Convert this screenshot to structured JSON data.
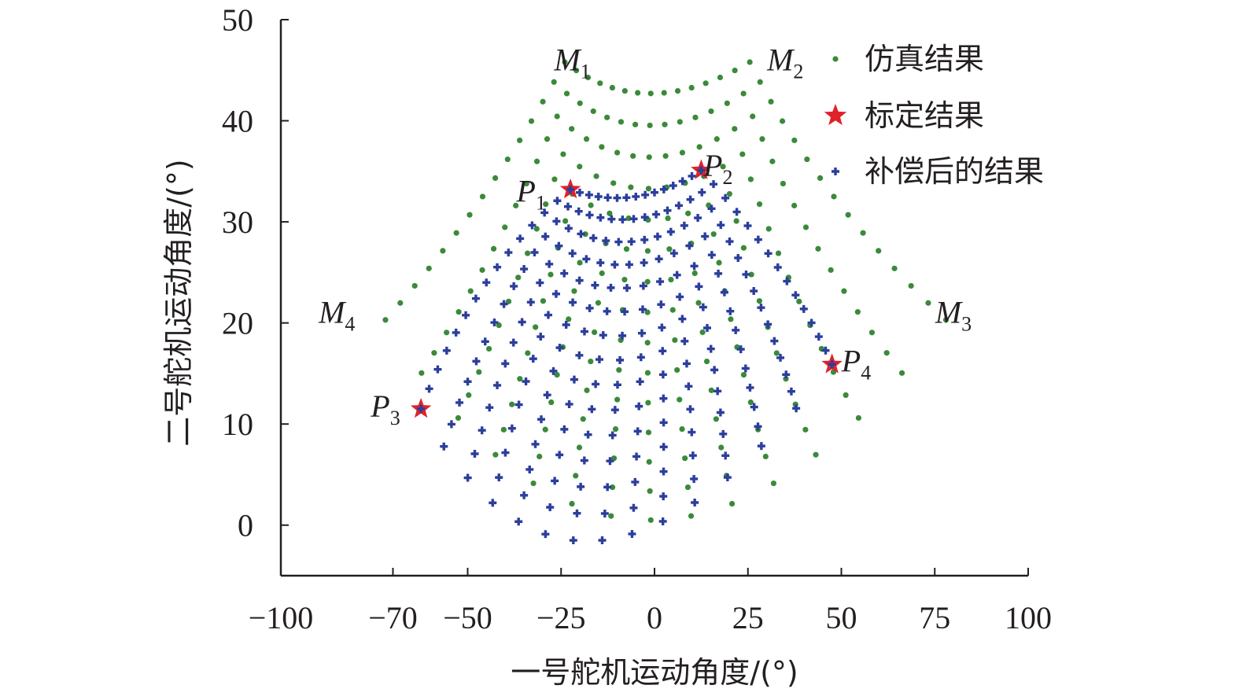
{
  "chart_data": {
    "type": "scatter",
    "xlabel": "一号舵机运动角度/(°)",
    "ylabel": "二号舵机运动角度/(°)",
    "xlim": [
      -100,
      100
    ],
    "ylim": [
      -5,
      50
    ],
    "x_ticks": [
      {
        "value": -100,
        "label": "−100"
      },
      {
        "value": -70,
        "label": "−70"
      },
      {
        "value": -50,
        "label": "−50"
      },
      {
        "value": -25,
        "label": "−25"
      },
      {
        "value": 0,
        "label": "0"
      },
      {
        "value": 25,
        "label": "25"
      },
      {
        "value": 50,
        "label": "50"
      },
      {
        "value": 75,
        "label": "75"
      },
      {
        "value": 100,
        "label": "100"
      }
    ],
    "y_ticks": [
      {
        "value": 0,
        "label": "0"
      },
      {
        "value": 10,
        "label": "10"
      },
      {
        "value": 20,
        "label": "20"
      },
      {
        "value": 30,
        "label": "30"
      },
      {
        "value": 40,
        "label": "40"
      },
      {
        "value": 50,
        "label": "50"
      }
    ],
    "corner_labels": [
      {
        "name": "M",
        "sub": "1",
        "x": -22,
        "y": 45
      },
      {
        "name": "M",
        "sub": "2",
        "x": 35,
        "y": 45
      },
      {
        "name": "M",
        "sub": "3",
        "x": 80,
        "y": 20
      },
      {
        "name": "M",
        "sub": "4",
        "x": -85,
        "y": 20
      }
    ],
    "point_labels": [
      {
        "name": "P",
        "sub": "1",
        "x": -33,
        "y": 32
      },
      {
        "name": "P",
        "sub": "2",
        "x": 17,
        "y": 34.5
      },
      {
        "name": "P",
        "sub": "3",
        "x": -72,
        "y": 10.7
      },
      {
        "name": "P",
        "sub": "4",
        "x": 54,
        "y": 15.2
      }
    ],
    "series": [
      {
        "name": "仿真结果",
        "marker": "dot",
        "color": "#3a8a3a",
        "grid": {
          "rows": 15,
          "cols": 15,
          "corners": {
            "M1": [
              -24,
              45.8
            ],
            "M2": [
              25.5,
              45.8
            ],
            "M3": [
              78,
              20.3
            ],
            "M4": [
              -72,
              20.3
            ],
            "C_top": [
              -1,
              42.7
            ],
            "C_bottom": [
              -1,
              0.5
            ],
            "C_left": [
              -46,
              32.5
            ],
            "C_right": [
              48,
              32.5
            ]
          }
        }
      },
      {
        "name": "标定结果",
        "marker": "star",
        "color": "#e0222a",
        "points": [
          {
            "x": -22.5,
            "y": 33.2
          },
          {
            "x": 12.5,
            "y": 35.1
          },
          {
            "x": -62.5,
            "y": 11.5
          },
          {
            "x": 47.5,
            "y": 15.9
          }
        ]
      },
      {
        "name": "补偿后的结果",
        "marker": "plus",
        "color": "#2b3e9c",
        "grid": {
          "rows": 15,
          "cols": 15,
          "corners": {
            "P1": [
              -22.5,
              33.2
            ],
            "P2": [
              12.5,
              35.1
            ],
            "P3": [
              -62.5,
              11.5
            ],
            "P4": [
              47.5,
              15.9
            ],
            "C_top": [
              -5,
              32.5
            ],
            "C_bottom": [
              -14,
              -1.5
            ],
            "C_left": [
              -45,
              24
            ],
            "C_right": [
              33,
              25.5
            ]
          }
        }
      }
    ]
  }
}
